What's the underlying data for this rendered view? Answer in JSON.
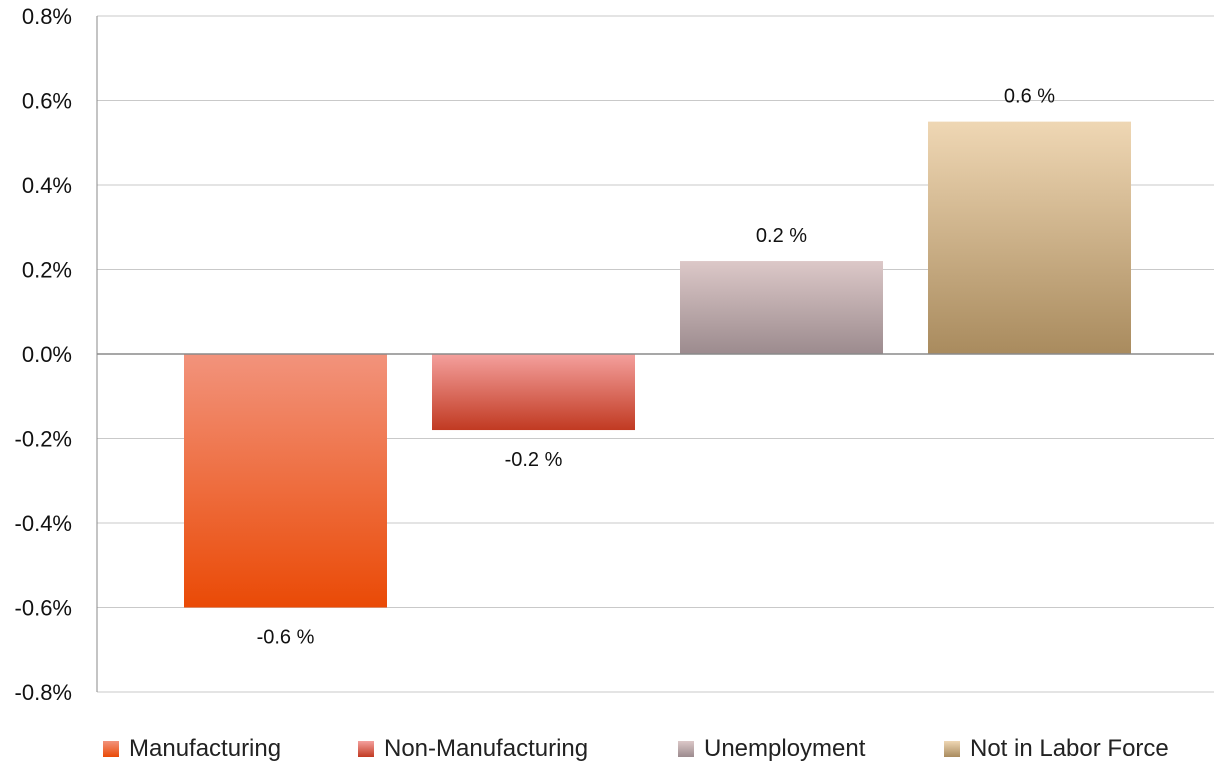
{
  "chart_data": {
    "type": "bar",
    "title": "",
    "xlabel": "",
    "ylabel": "",
    "ylim": [
      -0.8,
      0.8
    ],
    "yticks": [
      "0.8%",
      "0.6%",
      "0.4%",
      "0.2%",
      "0.0%",
      "-0.2%",
      "-0.4%",
      "-0.6%",
      "-0.8%"
    ],
    "ytick_values": [
      0.8,
      0.6,
      0.4,
      0.2,
      0.0,
      -0.2,
      -0.4,
      -0.6,
      -0.8
    ],
    "grid": true,
    "legend_position": "bottom",
    "categories": [
      "Manufacturing",
      "Non-Manufacturing",
      "Unemployment",
      "Not in Labor Force"
    ],
    "values": [
      -0.6,
      -0.18,
      0.22,
      0.55
    ],
    "data_labels": [
      "-0.6 %",
      "-0.2 %",
      "0.2 %",
      "0.6 %"
    ],
    "colors": [
      {
        "top": "#f2937c",
        "bottom": "#ea4a06"
      },
      {
        "top": "#f4a09d",
        "bottom": "#c13a22"
      },
      {
        "top": "#dcc8c8",
        "bottom": "#9c8b8e"
      },
      {
        "top": "#efd7b4",
        "bottom": "#a98b5e"
      }
    ],
    "legend_colors": [
      "#ee6a48",
      "#d35a4a",
      "#c4b2b2",
      "#d7bd91"
    ]
  }
}
